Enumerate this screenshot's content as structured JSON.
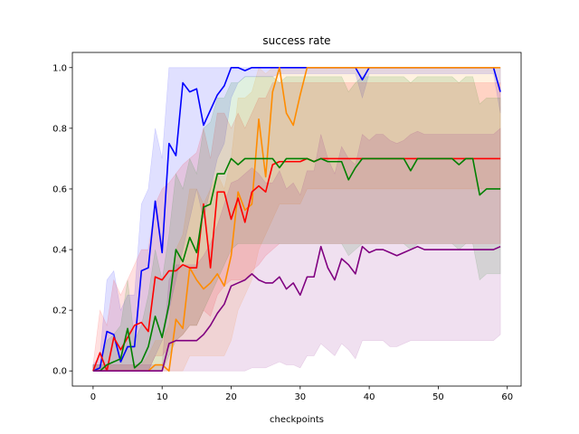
{
  "chart_data": {
    "type": "line",
    "title": "success rate",
    "xlabel": "checkpoints",
    "ylabel": "",
    "xlim": [
      -3,
      62
    ],
    "ylim": [
      -0.05,
      1.05
    ],
    "xticks": [
      0,
      10,
      20,
      30,
      40,
      50,
      60
    ],
    "yticks": [
      0.0,
      0.2,
      0.4,
      0.6,
      0.8,
      1.0
    ],
    "xtick_labels": [
      "0",
      "10",
      "20",
      "30",
      "40",
      "50",
      "60"
    ],
    "ytick_labels": [
      "0.0",
      "0.2",
      "0.4",
      "0.6",
      "0.8",
      "1.0"
    ],
    "grid": false,
    "legend": "none",
    "shaded_bands": true,
    "series": [
      {
        "color": "#0000ff",
        "x": [
          0,
          1,
          2,
          3,
          4,
          5,
          6,
          7,
          8,
          9,
          10,
          11,
          12,
          13,
          14,
          15,
          16,
          17,
          18,
          19,
          20,
          21,
          22,
          23,
          24,
          25,
          26,
          27,
          28,
          29,
          30,
          31,
          32,
          33,
          34,
          35,
          36,
          37,
          38,
          39,
          40,
          41,
          42,
          43,
          44,
          45,
          46,
          47,
          48,
          49,
          50,
          51,
          52,
          53,
          54,
          55,
          56,
          57,
          58,
          59
        ],
        "y": [
          0.0,
          0.01,
          0.13,
          0.12,
          0.03,
          0.08,
          0.08,
          0.33,
          0.34,
          0.56,
          0.39,
          0.75,
          0.71,
          0.95,
          0.92,
          0.93,
          0.81,
          0.86,
          0.91,
          0.94,
          1.0,
          1.0,
          0.99,
          1.0,
          1.0,
          1.0,
          1.0,
          1.0,
          1.0,
          1.0,
          1.0,
          1.0,
          1.0,
          1.0,
          1.0,
          1.0,
          1.0,
          1.0,
          1.0,
          0.96,
          1.0,
          1.0,
          1.0,
          1.0,
          1.0,
          1.0,
          1.0,
          1.0,
          1.0,
          1.0,
          1.0,
          1.0,
          1.0,
          1.0,
          1.0,
          1.0,
          1.0,
          1.0,
          1.0,
          0.92
        ],
        "lower": [
          0,
          0,
          0,
          0,
          0,
          0,
          0,
          0,
          0,
          0.05,
          0.1,
          0.2,
          0.3,
          0.4,
          0.5,
          0.6,
          0.5,
          0.6,
          0.7,
          0.75,
          0.9,
          0.95,
          0.97,
          0.97,
          0.97,
          0.97,
          0.97,
          0.98,
          0.98,
          0.98,
          0.98,
          0.98,
          0.98,
          0.98,
          0.98,
          0.98,
          0.98,
          0.98,
          0.98,
          0.9,
          0.98,
          0.98,
          0.98,
          0.98,
          0.98,
          0.98,
          0.98,
          0.98,
          0.98,
          0.98,
          0.98,
          0.98,
          0.98,
          0.98,
          0.98,
          0.98,
          0.98,
          0.98,
          0.98,
          0.85
        ],
        "upper": [
          0.02,
          0.05,
          0.3,
          0.33,
          0.2,
          0.25,
          0.25,
          0.55,
          0.6,
          0.8,
          0.7,
          1.0,
          1.0,
          1.0,
          1.0,
          1.0,
          1.0,
          1.0,
          1.0,
          1.0,
          1.0,
          1.0,
          1.0,
          1.0,
          1.0,
          1.0,
          1.0,
          1.0,
          1.0,
          1.0,
          1.0,
          1.0,
          1.0,
          1.0,
          1.0,
          1.0,
          1.0,
          1.0,
          1.0,
          1.0,
          1.0,
          1.0,
          1.0,
          1.0,
          1.0,
          1.0,
          1.0,
          1.0,
          1.0,
          1.0,
          1.0,
          1.0,
          1.0,
          1.0,
          1.0,
          1.0,
          1.0,
          1.0,
          1.0,
          1.0
        ]
      },
      {
        "color": "#ff8c00",
        "x": [
          0,
          1,
          2,
          3,
          4,
          5,
          6,
          7,
          8,
          9,
          10,
          11,
          12,
          13,
          14,
          15,
          16,
          17,
          18,
          19,
          20,
          21,
          22,
          23,
          24,
          25,
          26,
          27,
          28,
          29,
          30,
          31,
          32,
          33,
          34,
          35,
          36,
          37,
          38,
          39,
          40,
          41,
          42,
          43,
          44,
          45,
          46,
          47,
          48,
          49,
          50,
          51,
          52,
          53,
          54,
          55,
          56,
          57,
          58,
          59
        ],
        "y": [
          0.0,
          0.0,
          0.0,
          0.0,
          0.0,
          0.0,
          0.0,
          0.0,
          0.0,
          0.02,
          0.02,
          0.0,
          0.17,
          0.14,
          0.34,
          0.3,
          0.27,
          0.29,
          0.32,
          0.28,
          0.38,
          0.59,
          0.53,
          0.55,
          0.83,
          0.64,
          0.92,
          1.0,
          0.85,
          0.81,
          0.91,
          1.0,
          1.0,
          1.0,
          1.0,
          1.0,
          1.0,
          1.0,
          1.0,
          1.0,
          1.0,
          1.0,
          1.0,
          1.0,
          1.0,
          1.0,
          1.0,
          1.0,
          1.0,
          1.0,
          1.0,
          1.0,
          1.0,
          1.0,
          1.0,
          1.0,
          1.0,
          1.0,
          1.0,
          1.0
        ],
        "lower": [
          0,
          0,
          0,
          0,
          0,
          0,
          0,
          0,
          0,
          0,
          0,
          0,
          0,
          0,
          0.05,
          0.05,
          0.05,
          0.05,
          0.05,
          0.05,
          0.1,
          0.2,
          0.25,
          0.3,
          0.4,
          0.45,
          0.5,
          0.55,
          0.55,
          0.55,
          0.55,
          0.6,
          0.6,
          0.6,
          0.6,
          0.6,
          0.6,
          0.6,
          0.6,
          0.6,
          0.6,
          0.6,
          0.6,
          0.6,
          0.6,
          0.6,
          0.6,
          0.6,
          0.6,
          0.6,
          0.6,
          0.6,
          0.6,
          0.6,
          0.6,
          0.6,
          0.6,
          0.6,
          0.6,
          0.6
        ],
        "upper": [
          0.02,
          0.02,
          0.02,
          0.02,
          0.02,
          0.02,
          0.02,
          0.02,
          0.05,
          0.1,
          0.1,
          0.15,
          0.4,
          0.45,
          0.6,
          0.6,
          0.55,
          0.6,
          0.65,
          0.6,
          0.7,
          0.9,
          0.9,
          0.92,
          1.0,
          0.98,
          1.0,
          1.0,
          1.0,
          1.0,
          1.0,
          1.0,
          1.0,
          1.0,
          1.0,
          1.0,
          1.0,
          1.0,
          1.0,
          1.0,
          1.0,
          1.0,
          1.0,
          1.0,
          1.0,
          1.0,
          1.0,
          1.0,
          1.0,
          1.0,
          1.0,
          1.0,
          1.0,
          1.0,
          1.0,
          1.0,
          1.0,
          1.0,
          1.0,
          1.0
        ]
      },
      {
        "color": "#ff0000",
        "x": [
          0,
          1,
          2,
          3,
          4,
          5,
          6,
          7,
          8,
          9,
          10,
          11,
          12,
          13,
          14,
          15,
          16,
          17,
          18,
          19,
          20,
          21,
          22,
          23,
          24,
          25,
          26,
          27,
          28,
          29,
          30,
          31,
          32,
          33,
          34,
          35,
          36,
          37,
          38,
          39,
          40,
          41,
          42,
          43,
          44,
          45,
          46,
          47,
          48,
          49,
          50,
          51,
          52,
          53,
          54,
          55,
          56,
          57,
          58,
          59
        ],
        "y": [
          0.0,
          0.06,
          0.0,
          0.11,
          0.07,
          0.11,
          0.15,
          0.16,
          0.13,
          0.31,
          0.3,
          0.33,
          0.33,
          0.35,
          0.34,
          0.34,
          0.55,
          0.34,
          0.59,
          0.59,
          0.5,
          0.57,
          0.49,
          0.59,
          0.61,
          0.59,
          0.68,
          0.69,
          0.69,
          0.69,
          0.69,
          0.7,
          0.69,
          0.7,
          0.7,
          0.7,
          0.7,
          0.7,
          0.7,
          0.7,
          0.7,
          0.7,
          0.7,
          0.7,
          0.7,
          0.7,
          0.7,
          0.7,
          0.7,
          0.7,
          0.7,
          0.7,
          0.7,
          0.7,
          0.7,
          0.7,
          0.7,
          0.7,
          0.7,
          0.7
        ],
        "lower": [
          0,
          0,
          0,
          0,
          0,
          0,
          0,
          0,
          0,
          0.05,
          0.05,
          0.08,
          0.1,
          0.12,
          0.15,
          0.15,
          0.2,
          0.18,
          0.25,
          0.28,
          0.3,
          0.3,
          0.3,
          0.33,
          0.35,
          0.38,
          0.4,
          0.42,
          0.42,
          0.42,
          0.42,
          0.42,
          0.42,
          0.42,
          0.42,
          0.42,
          0.42,
          0.42,
          0.42,
          0.42,
          0.42,
          0.42,
          0.42,
          0.42,
          0.42,
          0.42,
          0.42,
          0.42,
          0.42,
          0.42,
          0.42,
          0.42,
          0.42,
          0.42,
          0.42,
          0.42,
          0.42,
          0.42,
          0.42,
          0.42
        ],
        "upper": [
          0.02,
          0.2,
          0.15,
          0.3,
          0.25,
          0.3,
          0.35,
          0.4,
          0.4,
          0.55,
          0.6,
          0.62,
          0.65,
          0.68,
          0.7,
          0.72,
          0.8,
          0.7,
          0.85,
          0.85,
          0.8,
          0.85,
          0.8,
          0.85,
          0.9,
          0.9,
          0.95,
          0.95,
          0.95,
          0.95,
          0.95,
          0.95,
          0.95,
          0.95,
          0.95,
          0.95,
          0.95,
          0.95,
          0.95,
          0.95,
          0.95,
          0.95,
          0.95,
          0.95,
          0.95,
          0.95,
          0.95,
          0.95,
          0.95,
          0.95,
          0.95,
          0.95,
          0.95,
          0.95,
          0.95,
          0.95,
          0.95,
          0.95,
          0.95,
          0.95
        ]
      },
      {
        "color": "#008000",
        "x": [
          0,
          1,
          2,
          3,
          4,
          5,
          6,
          7,
          8,
          9,
          10,
          11,
          12,
          13,
          14,
          15,
          16,
          17,
          18,
          19,
          20,
          21,
          22,
          23,
          24,
          25,
          26,
          27,
          28,
          29,
          30,
          31,
          32,
          33,
          34,
          35,
          36,
          37,
          38,
          39,
          40,
          41,
          42,
          43,
          44,
          45,
          46,
          47,
          48,
          49,
          50,
          51,
          52,
          53,
          54,
          55,
          56,
          57,
          58,
          59
        ],
        "y": [
          0.0,
          0.0,
          0.02,
          0.03,
          0.04,
          0.14,
          0.01,
          0.03,
          0.08,
          0.18,
          0.11,
          0.22,
          0.4,
          0.36,
          0.44,
          0.39,
          0.54,
          0.55,
          0.65,
          0.65,
          0.7,
          0.68,
          0.7,
          0.7,
          0.7,
          0.7,
          0.7,
          0.67,
          0.7,
          0.7,
          0.7,
          0.7,
          0.69,
          0.7,
          0.69,
          0.69,
          0.69,
          0.63,
          0.67,
          0.7,
          0.7,
          0.7,
          0.7,
          0.7,
          0.7,
          0.7,
          0.66,
          0.7,
          0.7,
          0.7,
          0.7,
          0.7,
          0.7,
          0.68,
          0.7,
          0.7,
          0.58,
          0.6,
          0.6,
          0.6
        ],
        "lower": [
          0,
          0,
          0,
          0,
          0,
          0,
          0,
          0,
          0,
          0,
          0,
          0.05,
          0.1,
          0.12,
          0.15,
          0.15,
          0.2,
          0.25,
          0.3,
          0.35,
          0.4,
          0.42,
          0.42,
          0.42,
          0.42,
          0.42,
          0.42,
          0.42,
          0.42,
          0.42,
          0.42,
          0.42,
          0.42,
          0.42,
          0.42,
          0.42,
          0.42,
          0.38,
          0.4,
          0.42,
          0.42,
          0.42,
          0.42,
          0.42,
          0.42,
          0.42,
          0.4,
          0.42,
          0.42,
          0.42,
          0.42,
          0.42,
          0.42,
          0.4,
          0.42,
          0.42,
          0.3,
          0.32,
          0.32,
          0.32
        ],
        "upper": [
          0.02,
          0.02,
          0.1,
          0.12,
          0.15,
          0.3,
          0.1,
          0.15,
          0.25,
          0.4,
          0.3,
          0.45,
          0.65,
          0.6,
          0.7,
          0.65,
          0.8,
          0.82,
          0.9,
          0.9,
          0.95,
          0.95,
          0.97,
          0.97,
          0.97,
          0.97,
          0.97,
          0.95,
          0.97,
          0.97,
          0.97,
          0.97,
          0.97,
          0.97,
          0.97,
          0.97,
          0.97,
          0.92,
          0.95,
          0.97,
          0.97,
          0.97,
          0.97,
          0.97,
          0.97,
          0.97,
          0.95,
          0.97,
          0.97,
          0.97,
          0.97,
          0.97,
          0.97,
          0.95,
          0.97,
          0.97,
          0.88,
          0.9,
          0.9,
          0.9
        ]
      },
      {
        "color": "#800080",
        "x": [
          0,
          1,
          2,
          3,
          4,
          5,
          6,
          7,
          8,
          9,
          10,
          11,
          12,
          13,
          14,
          15,
          16,
          17,
          18,
          19,
          20,
          21,
          22,
          23,
          24,
          25,
          26,
          27,
          28,
          29,
          30,
          31,
          32,
          33,
          34,
          35,
          36,
          37,
          38,
          39,
          40,
          41,
          42,
          43,
          44,
          45,
          46,
          47,
          48,
          49,
          50,
          51,
          52,
          53,
          54,
          55,
          56,
          57,
          58,
          59
        ],
        "y": [
          0.0,
          0.0,
          0.0,
          0.0,
          0.0,
          0.0,
          0.0,
          0.0,
          0.0,
          0.0,
          0.0,
          0.09,
          0.1,
          0.1,
          0.1,
          0.1,
          0.12,
          0.15,
          0.19,
          0.22,
          0.28,
          0.29,
          0.3,
          0.32,
          0.3,
          0.29,
          0.29,
          0.31,
          0.27,
          0.29,
          0.25,
          0.31,
          0.31,
          0.41,
          0.34,
          0.3,
          0.37,
          0.35,
          0.32,
          0.41,
          0.39,
          0.4,
          0.4,
          0.39,
          0.38,
          0.39,
          0.4,
          0.41,
          0.4,
          0.4,
          0.4,
          0.4,
          0.4,
          0.4,
          0.4,
          0.4,
          0.4,
          0.4,
          0.4,
          0.41
        ],
        "lower": [
          0,
          0,
          0,
          0,
          0,
          0,
          0,
          0,
          0,
          0,
          0,
          0,
          0,
          0,
          0,
          0,
          0,
          0,
          0,
          0,
          0,
          0,
          0,
          0.01,
          0.01,
          0.01,
          0.02,
          0.03,
          0.02,
          0.02,
          0.01,
          0.05,
          0.05,
          0.09,
          0.07,
          0.05,
          0.09,
          0.07,
          0.04,
          0.1,
          0.1,
          0.1,
          0.1,
          0.08,
          0.08,
          0.09,
          0.1,
          0.1,
          0.1,
          0.1,
          0.1,
          0.1,
          0.1,
          0.1,
          0.1,
          0.1,
          0.1,
          0.1,
          0.1,
          0.12
        ],
        "upper": [
          0.02,
          0.02,
          0.02,
          0.02,
          0.02,
          0.02,
          0.02,
          0.02,
          0.02,
          0.02,
          0.02,
          0.3,
          0.35,
          0.35,
          0.35,
          0.35,
          0.38,
          0.42,
          0.48,
          0.55,
          0.62,
          0.63,
          0.65,
          0.67,
          0.65,
          0.62,
          0.62,
          0.66,
          0.6,
          0.62,
          0.58,
          0.66,
          0.66,
          0.78,
          0.7,
          0.65,
          0.74,
          0.7,
          0.68,
          0.78,
          0.76,
          0.78,
          0.78,
          0.76,
          0.75,
          0.76,
          0.78,
          0.79,
          0.78,
          0.78,
          0.78,
          0.78,
          0.78,
          0.78,
          0.78,
          0.78,
          0.78,
          0.78,
          0.78,
          0.8
        ]
      }
    ]
  }
}
